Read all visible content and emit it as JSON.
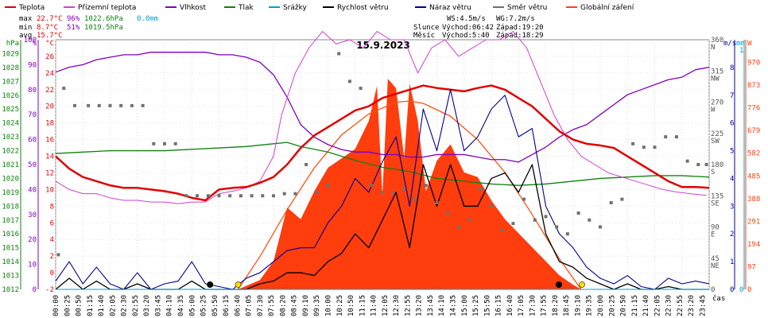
{
  "legend": [
    {
      "label": "Teplota",
      "color": "#e00000"
    },
    {
      "label": "Přízemní teplota",
      "color": "#d040d0"
    },
    {
      "label": "Vlhkost",
      "color": "#8000c0"
    },
    {
      "label": "Tlak",
      "color": "#108010"
    },
    {
      "label": "Srážky",
      "color": "#00a0d0"
    },
    {
      "label": "Rychlost větru",
      "color": "#000000"
    },
    {
      "label": "Náraz větru",
      "color": "#000090"
    },
    {
      "label": "Směr větru",
      "color": "#707070"
    },
    {
      "label": "Globální záření",
      "color": "#ff4010"
    }
  ],
  "stats": {
    "max": {
      "label": "max",
      "temp": "22.7°C",
      "hum": "96%",
      "press": "1022.6hPa",
      "rain": "0.0mm"
    },
    "min": {
      "label": "min",
      "temp": "8.7°C",
      "hum": "51%",
      "press": "1019.5hPa"
    },
    "avg": {
      "label": "avg",
      "temp": "15.7°C"
    }
  },
  "wind_info": {
    "ws": "WS:4.5m/s",
    "wg": "WG:7.2m/s",
    "sun_label": "Slunce",
    "sun_rise": "Východ:06:42",
    "sun_set": "Západ:19:20",
    "moon_label": "Měsíc",
    "moon_rise": "Východ:5:40",
    "moon_set": "Západ:18:29"
  },
  "chart_data": {
    "type": "line",
    "title": "15.9.2023",
    "x_label": "čas",
    "x_ticks": [
      "00:00",
      "00:25",
      "00:50",
      "01:15",
      "01:40",
      "02:05",
      "02:30",
      "02:55",
      "03:20",
      "03:45",
      "04:10",
      "04:35",
      "05:00",
      "05:25",
      "05:50",
      "06:15",
      "06:40",
      "07:05",
      "07:30",
      "07:55",
      "08:20",
      "08:45",
      "09:10",
      "09:35",
      "10:00",
      "10:25",
      "10:50",
      "11:15",
      "11:40",
      "12:05",
      "12:30",
      "12:55",
      "13:20",
      "13:45",
      "14:10",
      "14:35",
      "15:00",
      "15:25",
      "15:50",
      "16:15",
      "16:40",
      "17:05",
      "17:30",
      "17:55",
      "18:20",
      "18:45",
      "19:10",
      "19:35",
      "20:00",
      "20:25",
      "20:50",
      "21:15",
      "21:40",
      "22:05",
      "22:30",
      "22:55",
      "23:20",
      "23:45"
    ],
    "axes": {
      "pressure_hpa": {
        "label": "hPa",
        "range": [
          1012,
          1030
        ],
        "ticks": [
          1012,
          1013,
          1014,
          1015,
          1016,
          1017,
          1018,
          1019,
          1020,
          1021,
          1022,
          1023,
          1024,
          1025,
          1026,
          1027,
          1028,
          1029
        ]
      },
      "humidity_pct": {
        "label": "%",
        "range": [
          0,
          100
        ],
        "ticks": [
          0,
          10,
          20,
          30,
          40,
          50,
          60,
          70,
          80,
          90,
          100
        ]
      },
      "temperature_c": {
        "label": "°C",
        "range": [
          -2,
          28
        ],
        "ticks": [
          -2,
          0,
          2,
          4,
          6,
          8,
          10,
          12,
          14,
          16,
          18,
          20,
          22,
          24,
          26
        ]
      },
      "wind_speed_ms": {
        "label": "m/s",
        "range": [
          0,
          9
        ],
        "ticks": [
          0,
          1,
          2,
          3,
          4,
          5,
          6,
          7,
          8
        ]
      },
      "rain_mm": {
        "label": "mm",
        "range": [
          0,
          1
        ],
        "ticks": [
          0,
          1
        ]
      },
      "radiation_w": {
        "label": "W",
        "range": [
          0,
          1067
        ],
        "ticks": [
          0,
          97,
          194,
          291,
          388,
          485,
          582,
          679,
          776,
          873,
          970
        ]
      },
      "wind_dir": {
        "ticks": [
          {
            "deg": 0,
            "label": "0"
          },
          {
            "deg": 45,
            "label": "45",
            "dir": "NE"
          },
          {
            "deg": 90,
            "label": "90",
            "dir": "E"
          },
          {
            "deg": 135,
            "label": "135",
            "dir": "SE"
          },
          {
            "deg": 180,
            "label": "180",
            "dir": "S"
          },
          {
            "deg": 225,
            "label": "225",
            "dir": "SW"
          },
          {
            "deg": 270,
            "label": "270",
            "dir": "W"
          },
          {
            "deg": 315,
            "label": "315",
            "dir": "NW"
          },
          {
            "deg": 360,
            "label": "360",
            "dir": "N"
          }
        ]
      }
    },
    "series": {
      "temperature": {
        "name": "Teplota",
        "x": [
          0,
          0.5,
          1,
          1.5,
          2,
          2.5,
          3,
          3.5,
          4,
          4.5,
          5,
          5.5,
          6,
          6.5,
          7,
          7.5,
          8,
          8.5,
          9,
          9.5,
          10,
          10.5,
          11,
          11.5,
          12,
          12.5,
          13,
          13.5,
          14,
          14.5,
          15,
          15.5,
          16,
          16.5,
          17,
          17.5,
          18,
          18.5,
          19,
          19.5,
          20,
          20.5,
          21,
          21.5,
          22,
          22.5,
          23,
          23.5,
          24
        ],
        "y": [
          14,
          12.5,
          11.5,
          11,
          10.5,
          10.2,
          10.2,
          10,
          9.8,
          9.5,
          9,
          8.7,
          10,
          10.2,
          10.3,
          10.8,
          11.5,
          13,
          15,
          16.5,
          17.5,
          18.5,
          19.5,
          20,
          21,
          21.5,
          22,
          22.5,
          22.2,
          22,
          21.8,
          22.2,
          22.5,
          22,
          21,
          20,
          18.5,
          17,
          16,
          15.5,
          15.3,
          15,
          14,
          13,
          12,
          11,
          10.3,
          10.3,
          10.2
        ]
      },
      "ground_temperature": {
        "name": "Přízemní teplota",
        "x": [
          0,
          0.5,
          1,
          1.5,
          2,
          2.5,
          3,
          3.5,
          4,
          4.5,
          5,
          5.5,
          6,
          6.5,
          7,
          7.5,
          8,
          8.3,
          8.8,
          9.3,
          9.8,
          10.3,
          10.8,
          11.3,
          11.8,
          12.3,
          12.8,
          13.3,
          13.8,
          14.3,
          14.8,
          15.3,
          15.8,
          16.3,
          16.8,
          17.3,
          17.8,
          18.3,
          18.8,
          19.3,
          19.8,
          20.3,
          20.8,
          21.3,
          21.8,
          22.3,
          22.8,
          23.3,
          23.9
        ],
        "y": [
          11,
          10,
          9.5,
          9.5,
          9,
          8.7,
          8.7,
          8.5,
          8.5,
          8.3,
          8.5,
          8.5,
          9.5,
          9.8,
          10.2,
          11,
          14,
          19,
          24,
          27,
          29,
          27.5,
          28,
          27,
          29,
          28,
          28,
          24,
          27,
          28,
          26,
          27,
          28,
          28,
          29,
          27,
          23,
          19,
          16,
          14,
          13,
          12,
          11.5,
          11,
          10.5,
          10,
          9.7,
          9.5,
          9.3
        ]
      },
      "humidity": {
        "name": "Vlhkost",
        "x": [
          0,
          0.5,
          1,
          1.5,
          2,
          2.5,
          3,
          3.5,
          4,
          4.5,
          5,
          5.5,
          6,
          6.5,
          7,
          7.5,
          8,
          8.5,
          9,
          9.5,
          10,
          10.5,
          11,
          11.5,
          12,
          12.5,
          13,
          13.5,
          14,
          14.5,
          15,
          15.5,
          16,
          16.5,
          17,
          17.5,
          18,
          18.5,
          19,
          19.5,
          20,
          20.5,
          21,
          21.5,
          22,
          22.5,
          23,
          23.5,
          24
        ],
        "y": [
          87,
          89,
          90,
          92,
          93,
          94,
          94,
          95,
          95,
          95,
          95,
          95,
          94,
          94,
          93,
          91,
          86,
          77,
          66,
          61,
          58,
          56,
          55,
          55,
          54,
          54,
          53,
          53,
          54,
          54,
          54,
          53,
          52,
          52,
          51,
          54,
          57,
          61,
          64,
          66,
          70,
          74,
          78,
          80,
          82,
          84,
          85,
          88,
          89
        ]
      },
      "pressure": {
        "name": "Tlak",
        "x": [
          0,
          1,
          2,
          3,
          4,
          5,
          6,
          7,
          8,
          8.5,
          9,
          10,
          11,
          12,
          13,
          14,
          15,
          16,
          17,
          18,
          19,
          20,
          21,
          22,
          23,
          24
        ],
        "y": [
          1021.8,
          1021.9,
          1022.0,
          1022.0,
          1022.0,
          1022.1,
          1022.2,
          1022.3,
          1022.5,
          1022.6,
          1022.3,
          1021.9,
          1021.3,
          1020.8,
          1020.5,
          1020.0,
          1019.8,
          1019.6,
          1019.5,
          1019.6,
          1019.8,
          1020.0,
          1020.1,
          1020.2,
          1020.2,
          1020.1
        ]
      },
      "rain": {
        "name": "Srážky",
        "x": [
          0,
          24
        ],
        "y": [
          0,
          0
        ]
      },
      "wind_speed": {
        "name": "Rychlost větru",
        "x": [
          0,
          0.5,
          1,
          1.5,
          2,
          2.5,
          3,
          3.5,
          4,
          4.5,
          5,
          5.5,
          6,
          6.5,
          7,
          7.5,
          8,
          8.5,
          9,
          9.5,
          10,
          10.5,
          11,
          11.5,
          12,
          12.5,
          13,
          13.5,
          14,
          14.5,
          15,
          15.5,
          16,
          16.5,
          17,
          17.5,
          18,
          18.5,
          19,
          19.5,
          20,
          20.5,
          21,
          21.5,
          22,
          22.5,
          23,
          23.5,
          24
        ],
        "y": [
          0,
          0.4,
          0,
          0.3,
          0,
          0,
          0.2,
          0,
          0,
          0,
          0.3,
          0,
          0,
          0,
          0,
          0.2,
          0.3,
          0.6,
          0.6,
          0.5,
          1.0,
          1.3,
          2.0,
          1.5,
          2.5,
          3.5,
          1.5,
          4.5,
          3.0,
          4.5,
          3.0,
          3.0,
          4.0,
          4.2,
          3.5,
          4.5,
          2.0,
          1.0,
          0.8,
          0.4,
          0.2,
          0,
          0.2,
          0,
          0,
          0.1,
          0,
          0,
          0
        ]
      },
      "wind_gust": {
        "name": "Náraz větru",
        "x": [
          0,
          0.5,
          1,
          1.5,
          2,
          2.5,
          3,
          3.5,
          4,
          4.5,
          5,
          5.5,
          6,
          6.5,
          7,
          7.5,
          8,
          8.5,
          9,
          9.5,
          10,
          10.5,
          11,
          11.5,
          12,
          12.5,
          13,
          13.5,
          14,
          14.5,
          15,
          15.5,
          16,
          16.5,
          17,
          17.5,
          18,
          18.5,
          19,
          19.5,
          20,
          20.5,
          21,
          21.5,
          22,
          22.5,
          23,
          23.5,
          24
        ],
        "y": [
          0.3,
          1.0,
          0.2,
          0.8,
          0.2,
          0,
          0.6,
          0,
          0.2,
          0.3,
          1.0,
          0.2,
          0.1,
          0,
          0.4,
          0.6,
          1.0,
          1.4,
          1.5,
          1.5,
          2.4,
          3.0,
          4.0,
          3.5,
          4.6,
          5.5,
          3.0,
          6.5,
          5.0,
          7.2,
          5.0,
          5.5,
          6.5,
          7.0,
          5.5,
          5.8,
          3.0,
          2.0,
          1.5,
          0.8,
          0.4,
          0.2,
          0.5,
          0.1,
          0,
          0.4,
          0.2,
          0.3,
          0.2
        ]
      },
      "wind_direction": {
        "name": "Směr větru",
        "x": [
          0.1,
          0.3,
          0.7,
          1.2,
          1.6,
          2.0,
          2.4,
          2.8,
          3.2,
          3.6,
          4.0,
          4.4,
          4.8,
          5.2,
          5.6,
          6.0,
          6.4,
          6.8,
          7.2,
          7.6,
          8.0,
          8.4,
          8.8,
          9.2,
          9.6,
          10.0,
          10.4,
          10.8,
          11.2,
          11.6,
          12.0,
          12.4,
          12.8,
          13.2,
          13.6,
          14.0,
          14.4,
          14.8,
          15.2,
          15.6,
          16.0,
          16.4,
          16.8,
          17.2,
          17.6,
          18.0,
          18.4,
          18.8,
          19.2,
          19.6,
          20.0,
          20.4,
          20.8,
          21.2,
          21.6,
          22.0,
          22.4,
          22.8,
          23.2,
          23.6,
          23.9
        ],
        "y": [
          50,
          290,
          265,
          265,
          265,
          265,
          265,
          265,
          265,
          210,
          210,
          210,
          135,
          135,
          135,
          135,
          135,
          135,
          135,
          135,
          135,
          138,
          138,
          180,
          140,
          150,
          340,
          300,
          290,
          150,
          140,
          140,
          145,
          130,
          150,
          125,
          110,
          90,
          100,
          145,
          120,
          85,
          95,
          130,
          100,
          105,
          90,
          80,
          110,
          100,
          90,
          125,
          130,
          210,
          205,
          205,
          220,
          220,
          185,
          180,
          180
        ]
      },
      "global_radiation": {
        "name": "Globální záření",
        "x": [
          6.7,
          7.5,
          8.0,
          8.5,
          9.0,
          9.5,
          10.0,
          10.5,
          11.0,
          11.5,
          11.8,
          12.0,
          12.2,
          12.5,
          12.8,
          13.0,
          13.3,
          13.6,
          14.0,
          14.5,
          15.0,
          15.5,
          16.0,
          16.5,
          17.0,
          17.5,
          18.0,
          18.5,
          19.0,
          19.3
        ],
        "y": [
          0,
          40,
          120,
          350,
          300,
          420,
          520,
          560,
          600,
          720,
          870,
          400,
          900,
          860,
          560,
          880,
          720,
          420,
          550,
          620,
          500,
          480,
          380,
          300,
          240,
          180,
          120,
          60,
          20,
          0
        ]
      },
      "clear_sky_radiation": {
        "name": "Globální záření (teor.)",
        "x": [
          6.7,
          7.5,
          8.5,
          9.5,
          10.5,
          11.5,
          12.5,
          13.0,
          13.5,
          14.5,
          15.5,
          16.5,
          17.5,
          18.5,
          19.3
        ],
        "y": [
          0,
          140,
          340,
          520,
          660,
          750,
          800,
          805,
          795,
          740,
          640,
          500,
          320,
          130,
          0
        ]
      }
    }
  }
}
